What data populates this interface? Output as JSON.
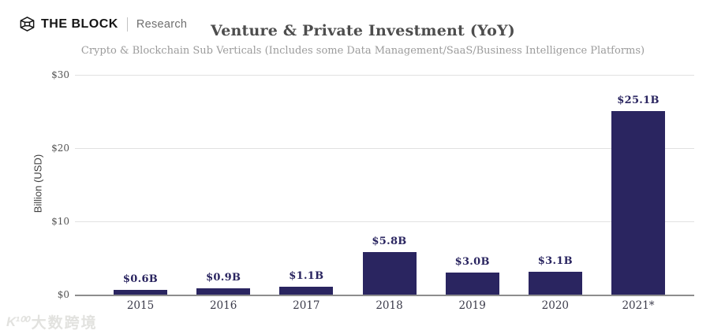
{
  "header": {
    "brand": "THE BLOCK",
    "brand_sub": "Research"
  },
  "chart_data": {
    "type": "bar",
    "title": "Venture & Private Investment (YoY)",
    "subtitle": "Crypto & Blockchain Sub Verticals (Includes some Data Management/SaaS/Business Intelligence Platforms)",
    "ylabel": "Billion (USD)",
    "ylim": [
      0,
      30
    ],
    "grid": true,
    "legend": "none",
    "bar_color": "#2a2560",
    "value_label_color": "#2a2560",
    "categories": [
      "2015",
      "2016",
      "2017",
      "2018",
      "2019",
      "2020",
      "2021*"
    ],
    "values": [
      0.6,
      0.9,
      1.1,
      5.8,
      3.0,
      3.1,
      25.1
    ],
    "bar_labels": [
      "$0.6B",
      "$0.9B",
      "$1.1B",
      "$5.8B",
      "$3.0B",
      "$3.1B",
      "$25.1B"
    ],
    "yticks": [
      {
        "label": "$0",
        "value": 0
      },
      {
        "label": "$10",
        "value": 10
      },
      {
        "label": "$20",
        "value": 20
      },
      {
        "label": "$30",
        "value": 30
      }
    ]
  },
  "watermark": {
    "brand": "K¹⁰⁰",
    "text": "大数跨境"
  }
}
